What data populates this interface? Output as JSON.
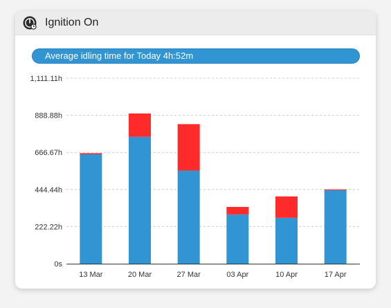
{
  "widget": {
    "title": "Ignition On",
    "icon": "speedometer-icon",
    "banner": "Average idling time for Today 4h:52m"
  },
  "colors": {
    "idling": "#3194d3",
    "extra": "#ff2a2a",
    "grid": "#cccccc",
    "axis": "#333333"
  },
  "chart_data": {
    "type": "bar",
    "stacked": true,
    "categories": [
      "13 Mar",
      "20 Mar",
      "27 Mar",
      "03 Apr",
      "10 Apr",
      "17 Apr"
    ],
    "series": [
      {
        "color": "#3194d3",
        "values": [
          655,
          760,
          558,
          295,
          275,
          440
        ]
      },
      {
        "color": "#ff2a2a",
        "values": [
          7,
          140,
          278,
          45,
          128,
          5
        ]
      }
    ],
    "yticks": [
      "0s",
      "222.22h",
      "444.44h",
      "666.67h",
      "888.88h",
      "1,111.11h"
    ],
    "ylim": [
      0,
      1111.11
    ],
    "grid": true,
    "legend": "none"
  }
}
